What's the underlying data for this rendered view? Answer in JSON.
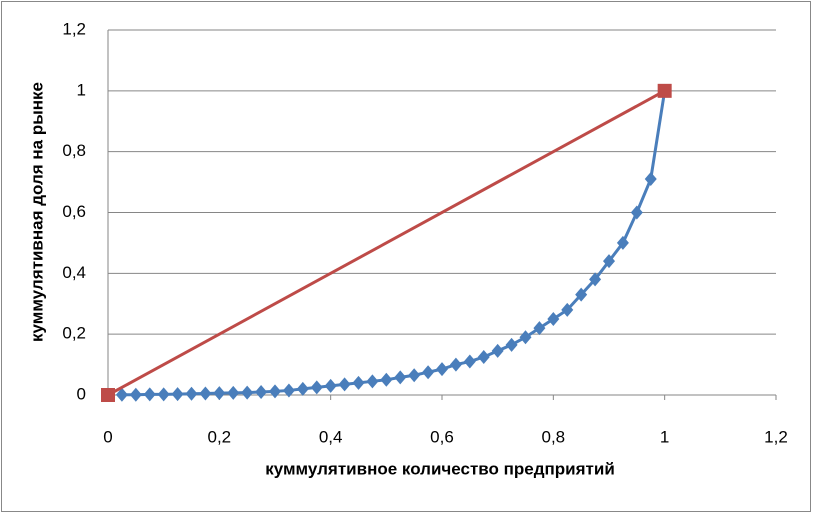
{
  "chart_data": {
    "type": "scatter",
    "x_label": "куммулятивное количество предприятий",
    "y_label": "куммулятивная доля  на рынке",
    "xlim": [
      0,
      1.2
    ],
    "xticks": [
      0,
      {
        "value": 0.2,
        "label": "0,2"
      },
      {
        "value": 0.4,
        "label": "0,4"
      },
      {
        "value": 0.6,
        "label": "0,6"
      },
      {
        "value": 0.8,
        "label": "0,8"
      },
      1,
      {
        "value": 1.2,
        "label": "1,2"
      }
    ],
    "ylim": [
      0,
      1.2
    ],
    "yticks": [
      0,
      {
        "value": 0.2,
        "label": "0,2"
      },
      {
        "value": 0.4,
        "label": "0,4"
      },
      {
        "value": 0.6,
        "label": "0,6"
      },
      {
        "value": 0.8,
        "label": "0,8"
      },
      1,
      {
        "value": 1.2,
        "label": "1,2"
      }
    ],
    "grid": true,
    "series": [
      {
        "color": "#4a7ebb",
        "marker": "diamond",
        "x": [
          0.025,
          0.05,
          0.075,
          0.1,
          0.125,
          0.15,
          0.175,
          0.2,
          0.225,
          0.25,
          0.275,
          0.3,
          0.325,
          0.35,
          0.375,
          0.4,
          0.425,
          0.45,
          0.475,
          0.5,
          0.525,
          0.55,
          0.575,
          0.6,
          0.625,
          0.65,
          0.675,
          0.7,
          0.725,
          0.75,
          0.775,
          0.8,
          0.825,
          0.85,
          0.875,
          0.9,
          0.925,
          0.95,
          0.975,
          1
        ],
        "values": [
          0.001,
          0.001,
          0.002,
          0.002,
          0.003,
          0.004,
          0.005,
          0.006,
          0.007,
          0.008,
          0.01,
          0.012,
          0.015,
          0.02,
          0.025,
          0.03,
          0.035,
          0.04,
          0.045,
          0.05,
          0.058,
          0.065,
          0.075,
          0.085,
          0.1,
          0.11,
          0.125,
          0.145,
          0.165,
          0.19,
          0.22,
          0.25,
          0.28,
          0.33,
          0.38,
          0.44,
          0.5,
          0.6,
          0.71,
          1
        ]
      },
      {
        "color": "#be4b48",
        "marker": "square",
        "x": [
          0,
          1
        ],
        "values": [
          0,
          1
        ]
      }
    ]
  }
}
